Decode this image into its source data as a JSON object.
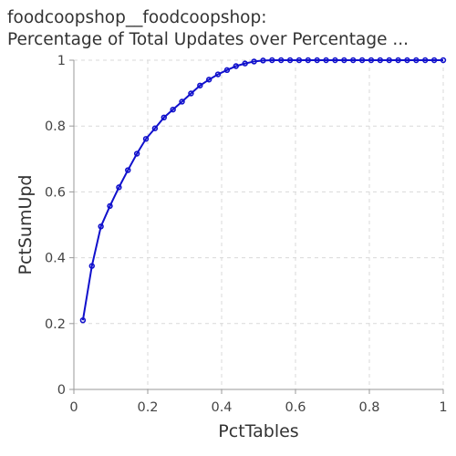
{
  "chart_data": {
    "type": "line",
    "title": [
      "foodcoopshop__foodcoopshop:",
      "Percentage of Total Updates over Percentage ..."
    ],
    "xlabel": "PctTables",
    "ylabel": "PctSumUpd",
    "xlim": [
      0,
      1
    ],
    "ylim": [
      0,
      1
    ],
    "xticks": [
      "0",
      "0.2",
      "0.4",
      "0.6",
      "0.8",
      "1"
    ],
    "yticks": [
      "0",
      "0.2",
      "0.4",
      "0.6",
      "0.8",
      "1"
    ],
    "grid": true,
    "color": "#1010cc",
    "series": [
      {
        "x": [
          0.0244,
          0.0488,
          0.0732,
          0.0976,
          0.122,
          0.1463,
          0.1707,
          0.1951,
          0.2195,
          0.2439,
          0.2683,
          0.2927,
          0.3171,
          0.3415,
          0.3659,
          0.3902,
          0.4146,
          0.439,
          0.4634,
          0.4878,
          0.5122,
          0.5366,
          0.561,
          0.5854,
          0.6098,
          0.6341,
          0.6585,
          0.6829,
          0.7073,
          0.7317,
          0.7561,
          0.7805,
          0.8049,
          0.8293,
          0.8537,
          0.878,
          0.9024,
          0.9268,
          0.9512,
          0.9756,
          1.0
        ],
        "y": [
          0.21,
          0.375,
          0.495,
          0.557,
          0.614,
          0.666,
          0.716,
          0.761,
          0.793,
          0.826,
          0.85,
          0.874,
          0.899,
          0.923,
          0.941,
          0.957,
          0.97,
          0.982,
          0.99,
          0.996,
          0.999,
          1.0,
          1.0,
          1.0,
          1.0,
          1.0,
          1.0,
          1.0,
          1.0,
          1.0,
          1.0,
          1.0,
          1.0,
          1.0,
          1.0,
          1.0,
          1.0,
          1.0,
          1.0,
          1.0,
          1.0
        ]
      }
    ]
  }
}
